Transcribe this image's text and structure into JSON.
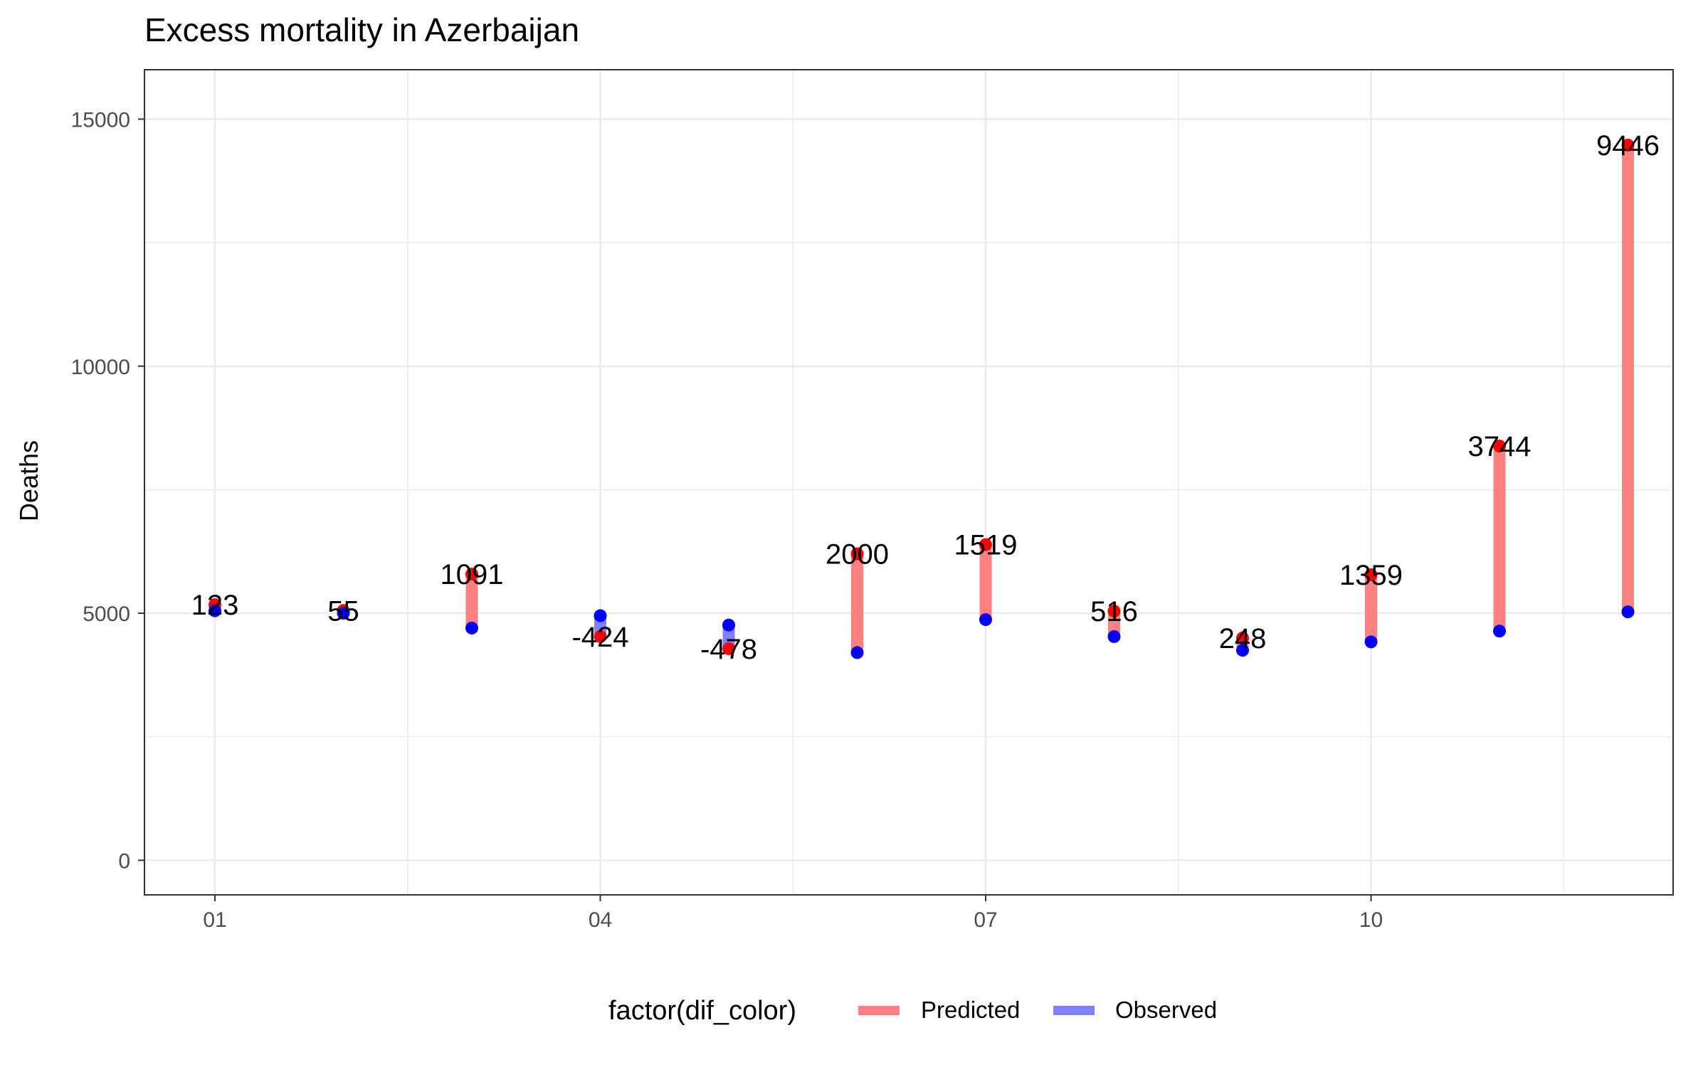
{
  "chart_data": {
    "type": "dumbbell",
    "title": "Excess mortality in Azerbaijan",
    "xlabel": "",
    "ylabel": "Deaths",
    "ylim": [
      -700,
      16000
    ],
    "y_ticks": [
      0,
      5000,
      10000,
      15000
    ],
    "y_tick_labels": [
      "0",
      "5000",
      "10000",
      "15000"
    ],
    "x_ticks": [
      "01",
      "04",
      "07",
      "10"
    ],
    "months": [
      1,
      2,
      3,
      4,
      5,
      6,
      7,
      8,
      9,
      10,
      11,
      12
    ],
    "grid": true,
    "legend": {
      "title": "factor(dif_color)",
      "position": "bottom",
      "entries": [
        {
          "label": "Predicted",
          "color": "#ff8080"
        },
        {
          "label": "Observed",
          "color": "#8080ff"
        }
      ]
    },
    "series": [
      {
        "name": "Predicted",
        "color": "#ff0000",
        "values": [
          5173,
          5055,
          5791,
          4526,
          4282,
          6203,
          6389,
          5043,
          4498,
          5779,
          8383,
          14474
        ]
      },
      {
        "name": "Observed",
        "color": "#0000ff",
        "values": [
          5050,
          5000,
          4700,
          4950,
          4760,
          4203,
          4870,
          4527,
          4250,
          4420,
          4639,
          5028
        ]
      }
    ],
    "difference_labels": [
      "123",
      "55",
      "1091",
      "-424",
      "-478",
      "2000",
      "1519",
      "516",
      "248",
      "1359",
      "3744",
      "9446"
    ],
    "colors": {
      "predicted_point": "#ff0000",
      "observed_point": "#0000ff",
      "predicted_segment": "#ff8080",
      "observed_segment": "#8080ff"
    }
  }
}
